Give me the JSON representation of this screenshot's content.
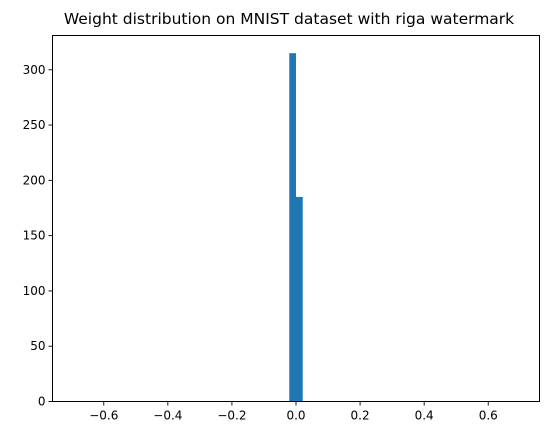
{
  "chart_data": {
    "type": "bar",
    "title": "Weight distribution on MNIST dataset with riga watermark",
    "xlabel": "",
    "ylabel": "",
    "xlim": [
      -0.76,
      0.76
    ],
    "ylim": [
      0,
      331
    ],
    "grid": false,
    "xticks": [
      -0.6,
      -0.4,
      -0.2,
      0.0,
      0.2,
      0.4,
      0.6
    ],
    "xtick_labels": [
      "−0.6",
      "−0.4",
      "−0.2",
      "0.0",
      "0.2",
      "0.4",
      "0.6"
    ],
    "yticks": [
      0,
      50,
      100,
      150,
      200,
      250,
      300
    ],
    "ytick_labels": [
      "0",
      "50",
      "100",
      "150",
      "200",
      "250",
      "300"
    ],
    "bins": [
      {
        "x0": -0.021,
        "x1": 0.0,
        "value": 315
      },
      {
        "x0": 0.0,
        "x1": 0.021,
        "value": 185
      }
    ],
    "color": "#1f77b4"
  }
}
